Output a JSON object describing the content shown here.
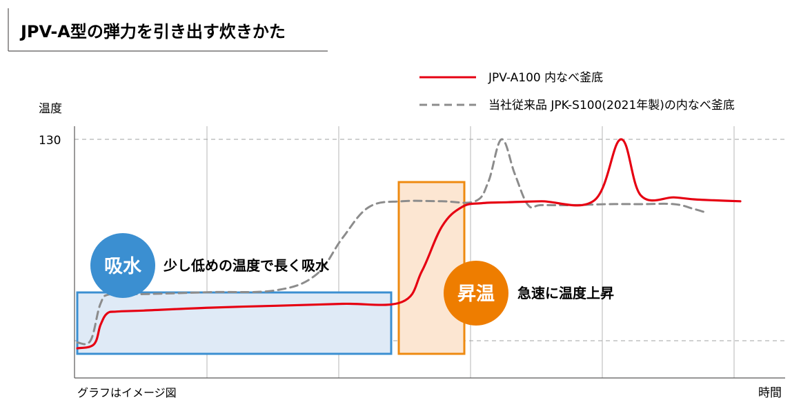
{
  "title": "JPV-A型の弾力を引き出す炊きかた",
  "legend": [
    {
      "label": "JPV-A100 内なべ釜底",
      "color": "#e60012",
      "style": "solid"
    },
    {
      "label": "当社従来品 JPK-S100(2021年製)の内なべ釜底",
      "color": "#8c8c8c",
      "style": "dashed"
    }
  ],
  "axes": {
    "y_label": "温度",
    "x_label": "時間",
    "y_tick": "130",
    "note": "グラフはイメージ図"
  },
  "annotations": {
    "soak": {
      "badge": "吸水",
      "text": "少し低めの温度で長く吸水",
      "badge_color": "#3b8fd1",
      "box_color": "#3b8fd1"
    },
    "heat": {
      "badge": "昇温",
      "text": "急速に温度上昇",
      "badge_color": "#ee7d00",
      "box_color": "#ee8a10"
    }
  },
  "chart_data": {
    "type": "line",
    "title": "JPV-A型の弾力を引き出す炊きかた",
    "xlabel": "時間",
    "ylabel": "温度",
    "xlim": [
      0,
      10
    ],
    "ylim": [
      20,
      140
    ],
    "y_ticks": [
      130
    ],
    "x_ticks_visible": false,
    "grid": true,
    "legend_position": "top-right",
    "series": [
      {
        "name": "JPV-A100 内なべ釜底",
        "color": "#e60012",
        "style": "solid",
        "x": [
          0.0,
          0.25,
          0.35,
          0.45,
          0.6,
          1.0,
          2.0,
          3.0,
          4.0,
          4.9,
          5.2,
          5.5,
          5.8,
          6.1,
          6.5,
          7.0,
          7.8,
          8.2,
          8.5,
          9.0,
          9.3,
          9.6,
          10.0
        ],
        "y": [
          22,
          24,
          34,
          40,
          41,
          41.5,
          43,
          44,
          45,
          46,
          62,
          85,
          95,
          97,
          97.5,
          98,
          98.5,
          130,
          101,
          100,
          99,
          98.5,
          98
        ]
      },
      {
        "name": "当社従来品 JPK-S100(2021年製)の内なべ釜底",
        "color": "#8c8c8c",
        "style": "dashed",
        "x": [
          0.0,
          0.2,
          0.35,
          0.5,
          1.0,
          2.0,
          3.0,
          3.6,
          4.0,
          4.4,
          4.9,
          5.5,
          6.0,
          6.2,
          6.4,
          6.6,
          6.8,
          7.0,
          7.5,
          8.0,
          8.5,
          9.0,
          9.3,
          9.5
        ],
        "y": [
          25,
          26,
          45,
          50,
          50,
          51,
          52,
          60,
          79,
          95,
          98,
          98,
          98,
          108,
          130,
          112,
          96,
          96,
          96,
          96.5,
          96.5,
          96.5,
          94,
          92
        ]
      }
    ]
  }
}
